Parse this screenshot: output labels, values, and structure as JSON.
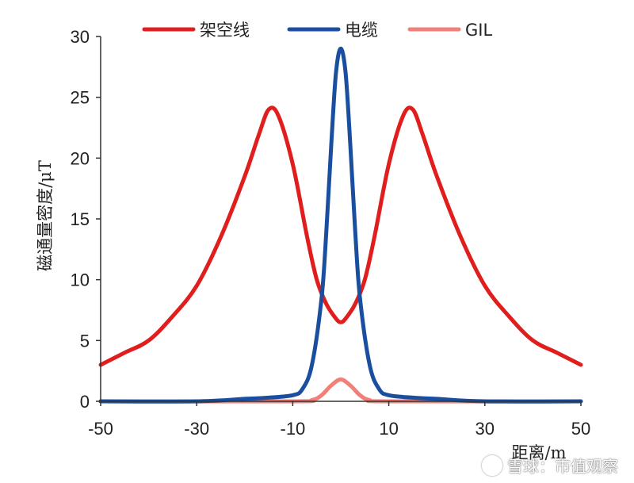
{
  "chart_data": {
    "type": "line",
    "xlabel": "距离/m",
    "ylabel": "磁通量密度/μT",
    "xlim": [
      -50,
      50
    ],
    "ylim": [
      0,
      30
    ],
    "x_ticks": [
      -50,
      -30,
      -10,
      10,
      30,
      50
    ],
    "y_ticks": [
      0,
      5,
      10,
      15,
      20,
      25,
      30
    ],
    "grid": false,
    "legend_position": "top",
    "series": [
      {
        "name": "架空线",
        "color": "#e01e1e",
        "x": [
          -50,
          -45,
          -40,
          -35,
          -30,
          -25,
          -20,
          -17,
          -15,
          -13,
          -10,
          -7,
          -5,
          -3,
          -1,
          0,
          1,
          3,
          5,
          7,
          10,
          13,
          15,
          17,
          20,
          25,
          30,
          35,
          40,
          45,
          50
        ],
        "y": [
          3.0,
          4.0,
          5.0,
          7.0,
          9.5,
          13.5,
          18.5,
          22.0,
          24.0,
          23.5,
          19.5,
          13.5,
          10.0,
          8.0,
          6.8,
          6.5,
          6.8,
          8.0,
          10.0,
          13.5,
          19.5,
          23.5,
          24.0,
          22.0,
          18.5,
          13.5,
          9.5,
          7.0,
          5.0,
          4.0,
          3.0
        ]
      },
      {
        "name": "电缆",
        "color": "#1a4fa0",
        "x": [
          -50,
          -30,
          -20,
          -15,
          -10,
          -8,
          -6,
          -4,
          -3,
          -2,
          -1,
          0,
          1,
          2,
          3,
          4,
          6,
          8,
          10,
          15,
          20,
          30,
          50
        ],
        "y": [
          0,
          0,
          0.2,
          0.3,
          0.5,
          1.0,
          3.0,
          8.5,
          14.0,
          21.0,
          27.0,
          29.0,
          27.0,
          21.0,
          14.0,
          8.5,
          3.0,
          1.0,
          0.5,
          0.3,
          0.2,
          0,
          0
        ]
      },
      {
        "name": "GIL",
        "color": "#f08078",
        "x": [
          -50,
          -10,
          -6,
          -4,
          -2,
          0,
          2,
          4,
          6,
          10,
          50
        ],
        "y": [
          0,
          0,
          0.1,
          0.5,
          1.3,
          1.8,
          1.3,
          0.5,
          0.1,
          0,
          0
        ]
      }
    ]
  },
  "watermark": "雪球：市值观察"
}
